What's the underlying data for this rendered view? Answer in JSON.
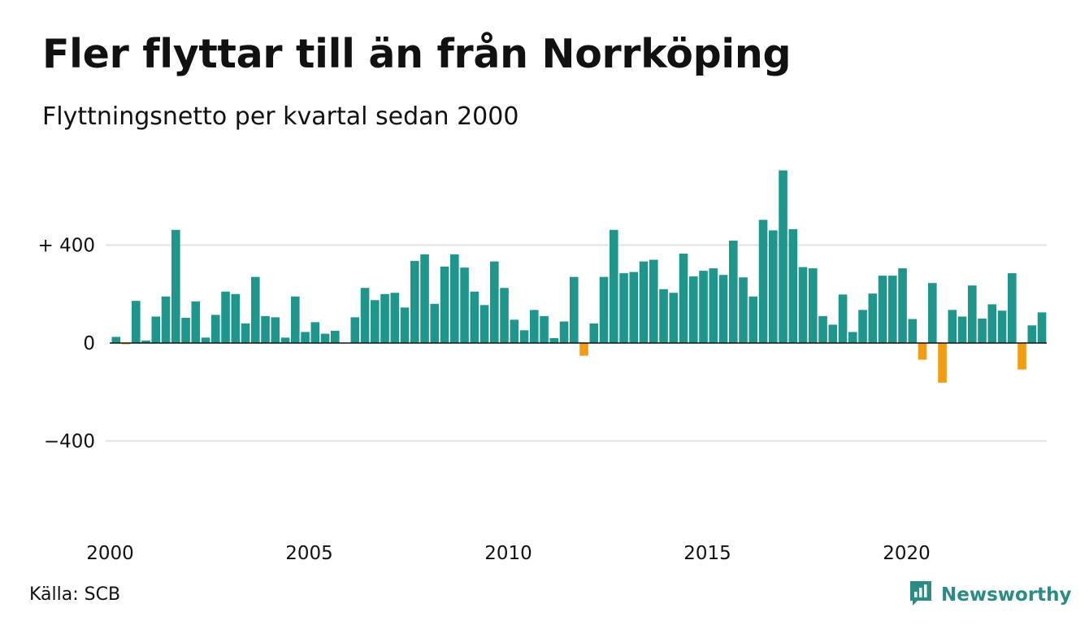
{
  "title": "Fler flyttar till än från Norrköping",
  "subtitle": "Flyttningsnetto per kvartal sedan 2000",
  "source": "Källa: SCB",
  "brand": {
    "name": "Newsworthy",
    "icon": "newsworthy-logo-icon",
    "color": "#2a8c84"
  },
  "colors": {
    "positive": "#1f968b",
    "negative": "#f39c12",
    "grid": "#e2e2e2",
    "baseline": "#111111"
  },
  "chart_data": {
    "type": "bar",
    "title": "Fler flyttar till än från Norrköping",
    "subtitle": "Flyttningsnetto per kvartal sedan 2000",
    "xlabel": "",
    "ylabel": "",
    "ylim": [
      -520,
      710
    ],
    "y_ticks": [
      {
        "value": 400,
        "label": "+ 400"
      },
      {
        "value": 0,
        "label": "0"
      },
      {
        "value": -400,
        "label": "−400"
      }
    ],
    "x_ticks": [
      {
        "year": 2000,
        "label": "2000"
      },
      {
        "year": 2005,
        "label": "2005"
      },
      {
        "year": 2010,
        "label": "2010"
      },
      {
        "year": 2015,
        "label": "2015"
      },
      {
        "year": 2020,
        "label": "2020"
      }
    ],
    "grid": true,
    "start_year": 2000,
    "values": [
      25,
      -5,
      172,
      10,
      108,
      190,
      462,
      103,
      170,
      22,
      115,
      210,
      200,
      80,
      270,
      110,
      105,
      22,
      190,
      45,
      85,
      38,
      50,
      0,
      105,
      225,
      175,
      200,
      205,
      145,
      335,
      362,
      160,
      312,
      362,
      308,
      210,
      155,
      333,
      225,
      95,
      52,
      135,
      110,
      20,
      88,
      270,
      -52,
      80,
      270,
      462,
      285,
      290,
      333,
      340,
      220,
      205,
      365,
      272,
      295,
      305,
      278,
      418,
      268,
      190,
      503,
      460,
      705,
      465,
      310,
      305,
      110,
      75,
      198,
      45,
      135,
      202,
      275,
      275,
      305,
      98,
      -68,
      245,
      -162,
      135,
      108,
      235,
      100,
      158,
      132,
      285,
      -108,
      72,
      125
    ]
  }
}
